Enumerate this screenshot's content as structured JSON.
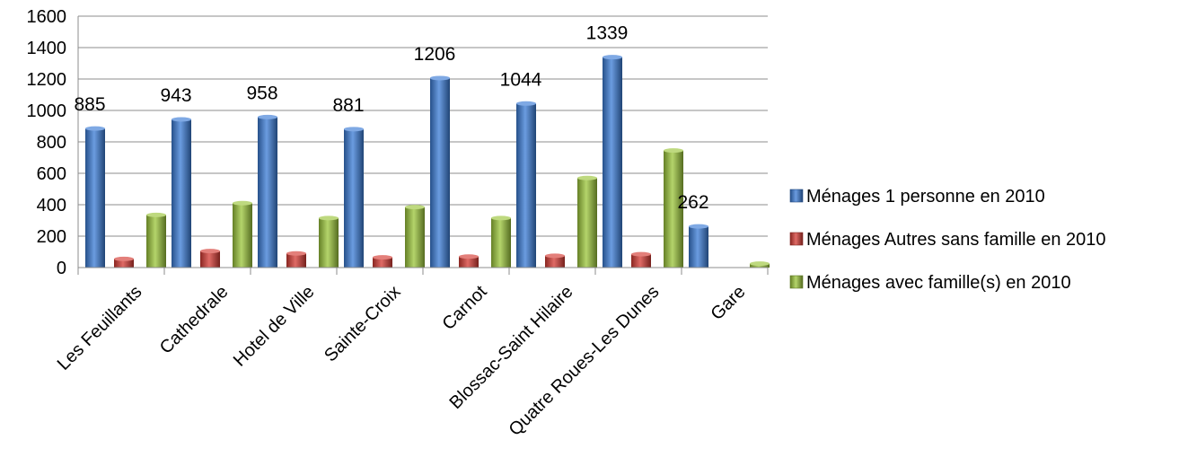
{
  "chart_data": {
    "type": "bar",
    "categories": [
      "Les Feuillants",
      "Cathedrale",
      "Hotel de Ville",
      "Sainte-Croix",
      "Carnot",
      "Blossac-Saint Hilaire",
      "Quatre Roues-Les Dunes",
      "Gare"
    ],
    "series": [
      {
        "name": "Ménages 1 personne en 2010",
        "color": "#3a7bd5",
        "values": [
          885,
          943,
          958,
          881,
          1206,
          1044,
          1339,
          262
        ],
        "labels": [
          "885",
          "943",
          "958",
          "881",
          "1206",
          "1044",
          "1339",
          "262"
        ]
      },
      {
        "name": "Ménages Autres sans famille en 2010",
        "color": "#d43a33",
        "values": [
          55,
          105,
          90,
          65,
          70,
          75,
          85,
          0
        ]
      },
      {
        "name": "Ménages avec famille(s) en 2010",
        "color": "#9bc53a",
        "values": [
          335,
          410,
          315,
          385,
          315,
          570,
          745,
          25
        ]
      }
    ],
    "yticks": [
      "0",
      "200",
      "400",
      "600",
      "800",
      "1000",
      "1200",
      "1400",
      "1600"
    ],
    "ylim": [
      0,
      1600
    ],
    "grid": true,
    "legend_position": "right",
    "title": "",
    "xlabel": "",
    "ylabel": ""
  }
}
